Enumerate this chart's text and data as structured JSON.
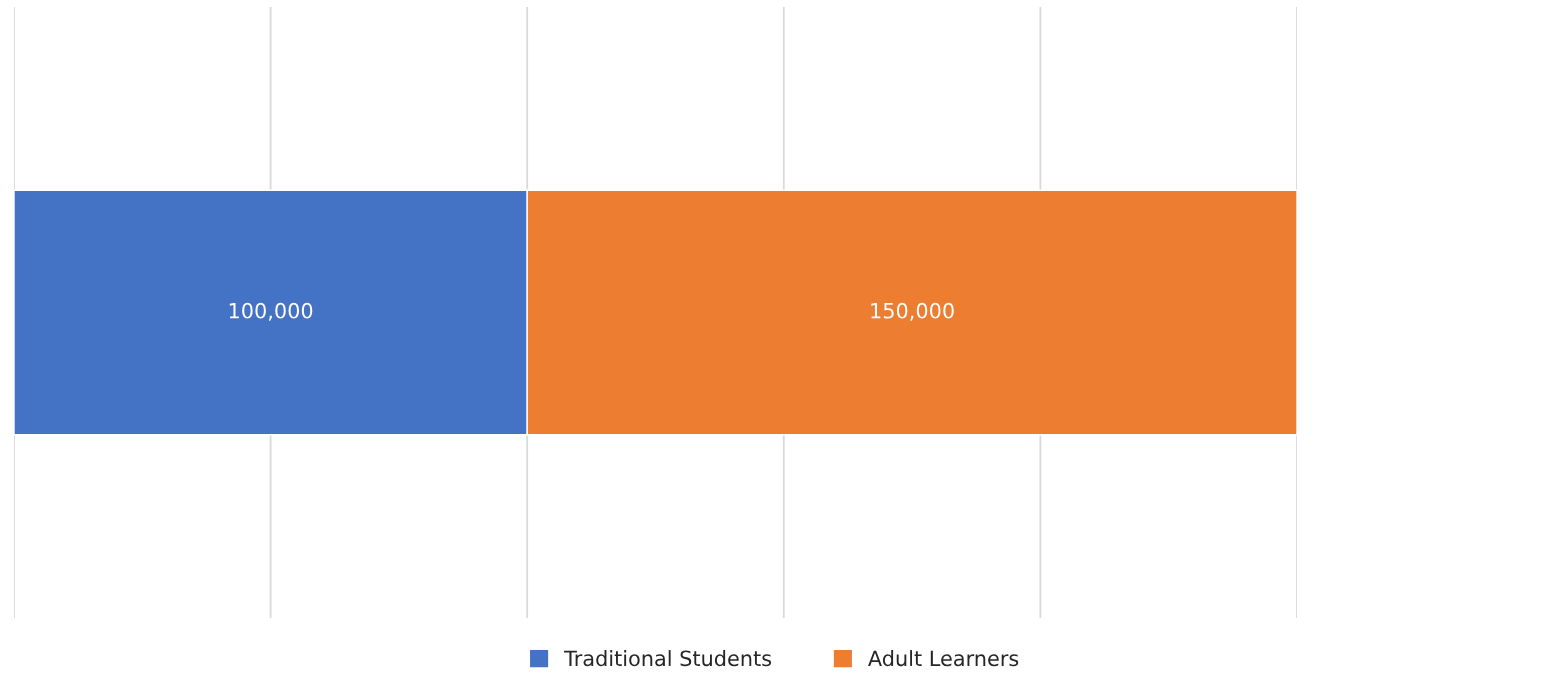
{
  "chart_data": {
    "type": "bar",
    "orientation": "horizontal",
    "stacked": true,
    "categories": [
      null
    ],
    "series": [
      {
        "name": "Traditional Students",
        "color": "#4472c4",
        "values": [
          100000
        ],
        "value_labels": [
          "100,000"
        ]
      },
      {
        "name": "Adult Learners",
        "color": "#ed7d31",
        "values": [
          150000
        ],
        "value_labels": [
          "150,000"
        ]
      }
    ],
    "tick_labels": false,
    "grid": "x",
    "legend": "bottom"
  }
}
